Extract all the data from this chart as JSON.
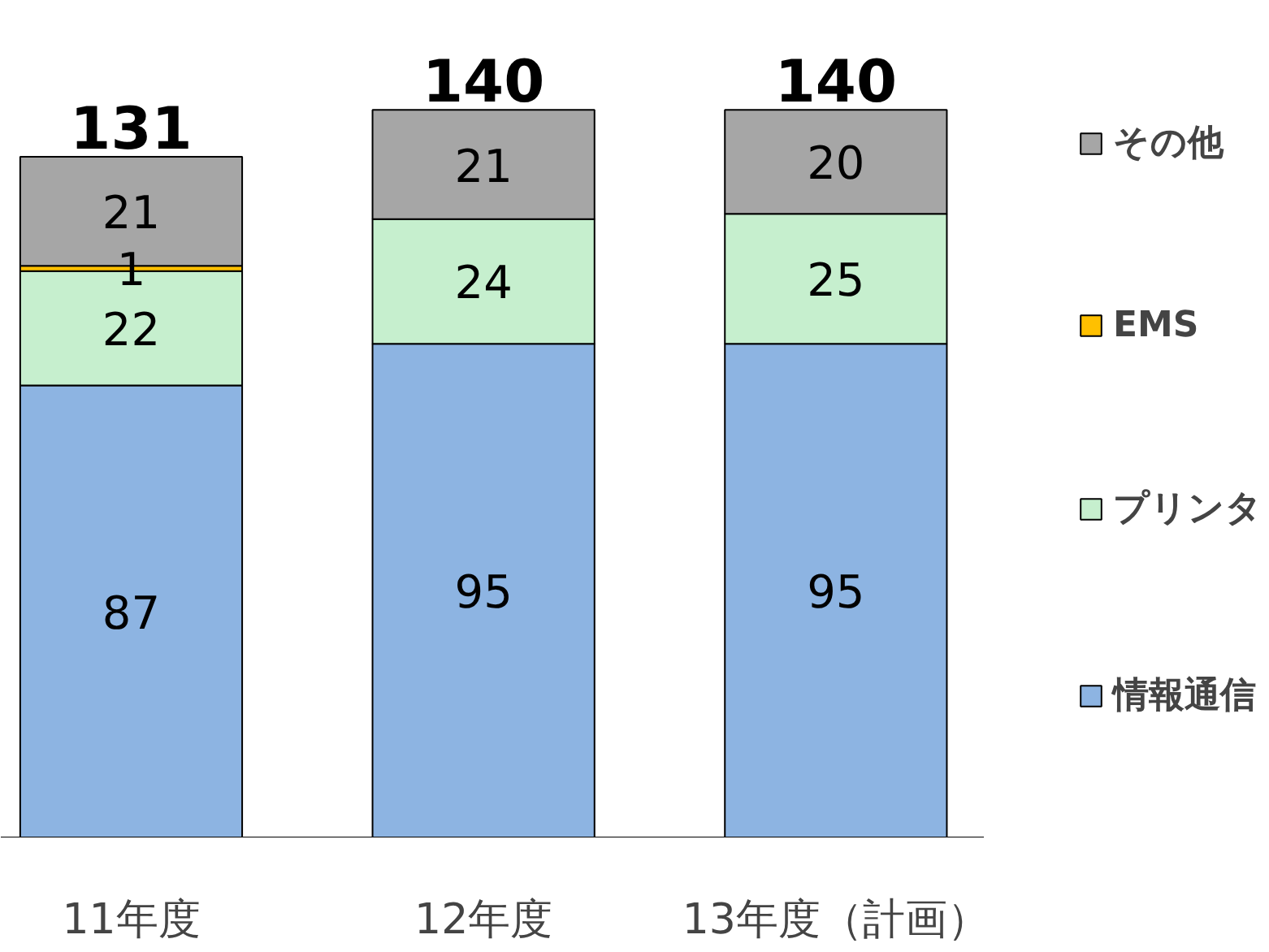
{
  "chart_data": {
    "type": "bar",
    "stacked": true,
    "categories": [
      "11年度",
      "12年度",
      "13年度（計画）"
    ],
    "series": [
      {
        "name": "情報通信",
        "color": "#8db4e2",
        "values": [
          87,
          95,
          95
        ]
      },
      {
        "name": "プリンタ",
        "color": "#c6efce",
        "values": [
          22,
          24,
          25
        ]
      },
      {
        "name": "EMS",
        "color": "#ffc000",
        "values": [
          1,
          null,
          null
        ]
      },
      {
        "name": "その他",
        "color": "#a6a6a6",
        "values": [
          21,
          21,
          20
        ]
      }
    ],
    "data_labels": true,
    "totals": [
      "131",
      "140",
      "140"
    ],
    "legend": "right",
    "grid": false
  }
}
